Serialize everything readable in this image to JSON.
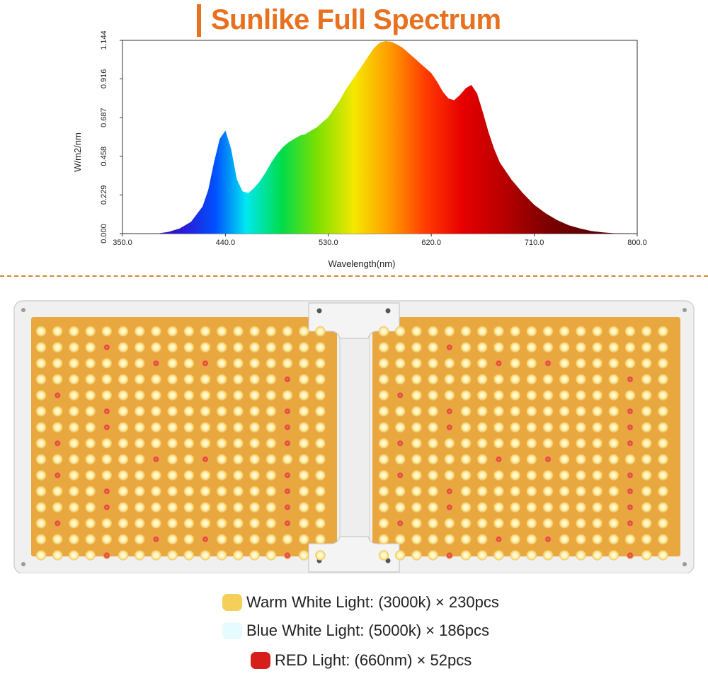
{
  "header": {
    "title": "Sunlike Full Spectrum"
  },
  "chart_data": {
    "type": "area",
    "title": "",
    "xlabel": "Wavelength(nm)",
    "ylabel": "W/m2/nm",
    "xlim": [
      350,
      800
    ],
    "ylim": [
      0,
      1.144
    ],
    "x_ticks": [
      "350.0",
      "440.0",
      "530.0",
      "620.0",
      "710.0",
      "800.0"
    ],
    "y_ticks": [
      "0.000",
      "0.229",
      "0.458",
      "0.687",
      "0.916",
      "1.144"
    ],
    "fill": "visible-spectrum gradient",
    "series": [
      {
        "x": [
          380,
          390,
          400,
          410,
          420,
          425,
          430,
          435,
          440,
          445,
          450,
          455,
          460,
          465,
          470,
          475,
          480,
          485,
          490,
          495,
          500,
          505,
          510,
          515,
          520,
          525,
          530,
          535,
          540,
          545,
          550,
          555,
          560,
          565,
          570,
          575,
          580,
          585,
          590,
          595,
          600,
          605,
          610,
          615,
          620,
          625,
          630,
          635,
          640,
          645,
          650,
          655,
          660,
          665,
          670,
          675,
          680,
          690,
          700,
          710,
          720,
          730,
          740,
          750,
          760,
          770,
          780,
          800
        ],
        "y": [
          0.0,
          0.01,
          0.03,
          0.07,
          0.16,
          0.26,
          0.42,
          0.56,
          0.61,
          0.5,
          0.32,
          0.25,
          0.24,
          0.27,
          0.31,
          0.36,
          0.42,
          0.47,
          0.51,
          0.54,
          0.56,
          0.58,
          0.59,
          0.61,
          0.63,
          0.66,
          0.69,
          0.74,
          0.79,
          0.85,
          0.9,
          0.95,
          1.0,
          1.05,
          1.1,
          1.13,
          1.14,
          1.135,
          1.12,
          1.1,
          1.07,
          1.04,
          1.01,
          0.98,
          0.95,
          0.9,
          0.84,
          0.8,
          0.79,
          0.82,
          0.86,
          0.88,
          0.83,
          0.72,
          0.6,
          0.5,
          0.42,
          0.32,
          0.24,
          0.17,
          0.12,
          0.08,
          0.05,
          0.03,
          0.015,
          0.007,
          0.002,
          0.0
        ]
      }
    ]
  },
  "legend": {
    "items": [
      {
        "label": "Warm White Light: (3000k) × 230pcs",
        "color": "#f6cf5b"
      },
      {
        "label": "Blue White Light: (5000k) × 186pcs",
        "color": "#e6fbff"
      },
      {
        "label": "RED Light: (660nm) × 52pcs",
        "color": "#d61f1a"
      }
    ]
  },
  "colors": {
    "accent": "#e8711f",
    "led_warm": "#fff3b8",
    "board": "#e9a83f",
    "led_red": "#e04a2f"
  }
}
